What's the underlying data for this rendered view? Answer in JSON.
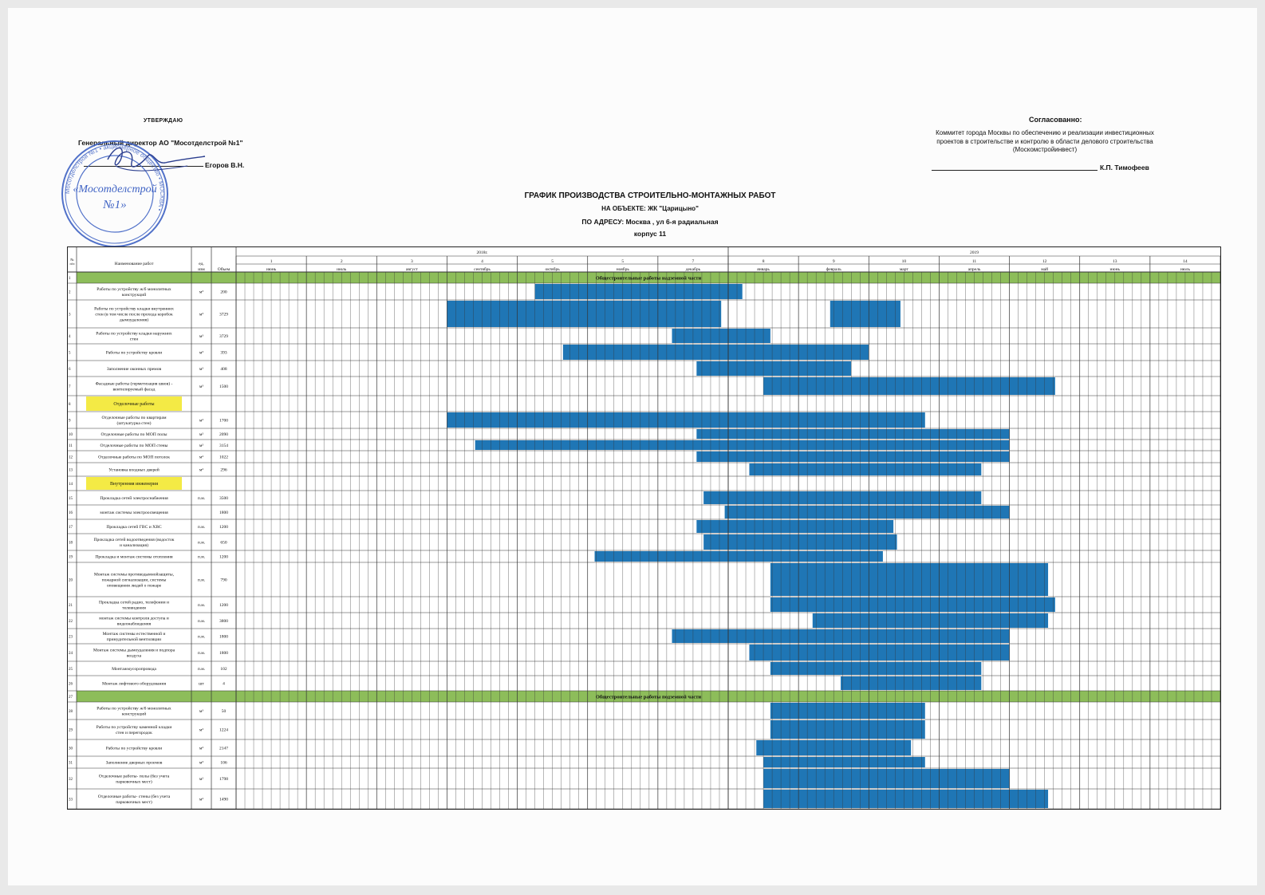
{
  "header": {
    "approve_title": "УТВЕРЖДАЮ",
    "approve_position": "Генеральный директор АО \"Мосотделстрой №1\"",
    "approve_name": "Егоров В.Н.",
    "agree_title": "Согласованно:",
    "agree_org": "Коммитет города Москвы по обеспечению и реализации инвестиционных проектов в строительстве и контролю в области делового строительства (Москомстройинвест)",
    "agree_name": "К.П. Тимофеев"
  },
  "document": {
    "title": "ГРАФИК ПРОИЗВОДСТВА СТРОИТЕЛЬНО-МОНТАЖНЫХ РАБОТ",
    "object": "НА ОБЪЕКТЕ: ЖК \"Царицыно\"",
    "address": "ПО АДРЕСУ: Москва , ул 6-я радиальная",
    "building": "корпус 11"
  },
  "stamp": {
    "center_text_1": "«Мосотделстрой",
    "center_text_2": "№1»",
    "ring_text": "Мосотделстрой №1 • акционерное общество • МОСКВА •",
    "color": "#3f63c4"
  },
  "table": {
    "headers": {
      "num": "№ п/п",
      "name": "Наименование работ",
      "unit": "ед. изм",
      "volume": "Объем"
    },
    "years": [
      {
        "label": "2018г.",
        "span": 7
      },
      {
        "label": "2019",
        "span": 7
      }
    ],
    "months": [
      {
        "num": "1",
        "name": "июнь"
      },
      {
        "num": "2",
        "name": "июль"
      },
      {
        "num": "3",
        "name": "август"
      },
      {
        "num": "4",
        "name": "сентябрь"
      },
      {
        "num": "5",
        "name": "октябрь"
      },
      {
        "num": "5",
        "name": "ноябрь"
      },
      {
        "num": "7",
        "name": "декабрь"
      },
      {
        "num": "8",
        "name": "январь"
      },
      {
        "num": "9",
        "name": "февраль"
      },
      {
        "num": "10",
        "name": "март"
      },
      {
        "num": "11",
        "name": "апрель"
      },
      {
        "num": "12",
        "name": "май"
      },
      {
        "num": "13",
        "name": "июнь"
      },
      {
        "num": "14",
        "name": "июль"
      }
    ],
    "bar_color": "#1f76b5",
    "section_color": "#8dbd5a",
    "subsection_color": "#f4ea45",
    "rows": [
      {
        "type": "section",
        "num": "1",
        "text": "Общестроительные работы надземной части"
      },
      {
        "type": "work",
        "num": "2",
        "name": "Работы по устройству ж/б монолитных конструкций",
        "unit": "м³",
        "volume": "200",
        "bars": [
          [
            6.58,
            7.2
          ],
          [
            4.25,
            7.2
          ]
        ],
        "h": 21
      },
      {
        "type": "work",
        "num": "3",
        "name": "Работы по устройству кладки внутренних стен (в том числе после прохода коробок дымоудаления)",
        "unit": "м³",
        "volume": "3729",
        "bars": [
          [
            3.0,
            6.9
          ],
          [
            8.45,
            9.45
          ]
        ],
        "h": 35
      },
      {
        "type": "work",
        "num": "4",
        "name": "Работы по устройству кладки наружних стен",
        "unit": "м³",
        "volume": "3729",
        "bars": [
          [
            6.2,
            7.6
          ]
        ],
        "h": 20
      },
      {
        "type": "work",
        "num": "5",
        "name": "Работы по устройству кровли",
        "unit": "м³",
        "volume": "393",
        "bars": [
          [
            4.65,
            9.0
          ]
        ],
        "h": 21
      },
      {
        "type": "work",
        "num": "6",
        "name": "Заполнение оконных премов",
        "unit": "м³",
        "volume": "408",
        "bars": [
          [
            6.55,
            8.75
          ]
        ],
        "h": 20
      },
      {
        "type": "work",
        "num": "7",
        "name": "Фасадные работы (герметизация швов) - вентилируемый фасад",
        "unit": "м³",
        "volume": "1500",
        "bars": [
          [
            7.5,
            11.65
          ]
        ],
        "h": 24
      },
      {
        "type": "subsection",
        "num": "8",
        "text": "Отделочные работы",
        "h": 20
      },
      {
        "type": "work",
        "num": "9",
        "name": "Отделочные работы по квартирам (штукатурка стен)",
        "unit": "м²",
        "volume": "1700",
        "bars": [
          [
            3.0,
            9.8
          ]
        ],
        "h": 21
      },
      {
        "type": "work",
        "num": "10",
        "name": "Отделочные работы по МОП полы",
        "unit": "м²",
        "volume": "2090",
        "bars": [
          [
            6.55,
            11.0
          ]
        ],
        "h": 14
      },
      {
        "type": "work",
        "num": "11",
        "name": "Отделочные работы по МОП стены",
        "unit": "м²",
        "volume": "3154",
        "bars": [
          [
            3.4,
            11.0
          ]
        ],
        "h": 14
      },
      {
        "type": "work",
        "num": "12",
        "name": "Отделочные работы по МОП потолок",
        "unit": "м²",
        "volume": "1022",
        "bars": [
          [
            6.55,
            11.0
          ]
        ],
        "h": 15
      },
      {
        "type": "work",
        "num": "13",
        "name": "Установка входных дверей",
        "unit": "м²",
        "volume": "296",
        "bars": [
          [
            7.3,
            10.6
          ]
        ],
        "h": 17
      },
      {
        "type": "subsection",
        "num": "14",
        "text": "Внутренняя инженерия",
        "h": 18
      },
      {
        "type": "work",
        "num": "15",
        "name": "Прокладка сетей электроснабжения",
        "unit": "п.м.",
        "volume": "3500",
        "bars": [
          [
            6.65,
            10.6
          ]
        ],
        "h": 18
      },
      {
        "type": "work",
        "num": "16",
        "name": "монтаж системы электроосвещения",
        "unit": "",
        "volume": "1800",
        "bars": [
          [
            6.95,
            11.0
          ]
        ],
        "h": 18
      },
      {
        "type": "work",
        "num": "17",
        "name": "Прокладка сетей ГВС и ХВС",
        "unit": "п.м.",
        "volume": "1200",
        "bars": [
          [
            6.55,
            9.35
          ]
        ],
        "h": 18
      },
      {
        "type": "work",
        "num": "18",
        "name": "Прокладка сетей водоотведения (водосток и канализация)",
        "unit": "п.м.",
        "volume": "650",
        "bars": [
          [
            6.65,
            9.4
          ]
        ],
        "h": 21
      },
      {
        "type": "work",
        "num": "19",
        "name": "Прокладка и монтаж системы отопления",
        "unit": "п.м.",
        "volume": "1200",
        "bars": [
          [
            5.1,
            9.2
          ]
        ],
        "h": 15
      },
      {
        "type": "work",
        "num": "20",
        "name": "Монтаж системы противодымнойзащиты, пожарной сигнализации, системы оповещения людей о пожаре",
        "unit": "п.м.",
        "volume": "790",
        "bars": [
          [
            7.6,
            11.55
          ]
        ],
        "h": 43
      },
      {
        "type": "work",
        "num": "21",
        "name": "Прокладка сетей радио, телефонии и телевидения",
        "unit": "п.м.",
        "volume": "1200",
        "bars": [
          [
            7.6,
            11.65
          ]
        ],
        "h": 20
      },
      {
        "type": "work",
        "num": "22",
        "name": "монтаж системы контроля доступа и видеонаблюдения",
        "unit": "п.м.",
        "volume": "3800",
        "bars": [
          [
            8.2,
            11.55
          ]
        ],
        "h": 20
      },
      {
        "type": "work",
        "num": "23",
        "name": "Монтаж системы естественной и принудительной вентиляции",
        "unit": "п.м.",
        "volume": "1800",
        "bars": [
          [
            6.2,
            11.0
          ]
        ],
        "h": 19
      },
      {
        "type": "work",
        "num": "24",
        "name": "Монтаж системы дымоудаления и подпора воздуха",
        "unit": "п.м.",
        "volume": "1800",
        "bars": [
          [
            7.3,
            11.0
          ]
        ],
        "h": 22
      },
      {
        "type": "work",
        "num": "25",
        "name": "Монтажмусоропровода",
        "unit": "п.м.",
        "volume": "102",
        "bars": [
          [
            7.6,
            10.6
          ]
        ],
        "h": 18
      },
      {
        "type": "work",
        "num": "26",
        "name": "Монтаж лифтового оборудования",
        "unit": "шт",
        "volume": "4",
        "bars": [
          [
            8.6,
            10.6
          ]
        ],
        "h": 19
      },
      {
        "type": "section",
        "num": "27",
        "text": "Общестроительные работы подземной части"
      },
      {
        "type": "work",
        "num": "28",
        "name": "Работы по устройству ж/б монолитных конструкций",
        "unit": "м³",
        "volume": "50",
        "bars": [
          [
            7.6,
            9.8
          ]
        ],
        "h": 22
      },
      {
        "type": "work",
        "num": "29",
        "name": "Работы по устройству каменной кладки стен и перегородок",
        "unit": "м³",
        "volume": "1224",
        "bars": [
          [
            7.6,
            9.8
          ]
        ],
        "h": 25
      },
      {
        "type": "work",
        "num": "30",
        "name": "Работы по устройству кровли",
        "unit": "м³",
        "volume": "2147",
        "bars": [
          [
            7.4,
            9.6
          ]
        ],
        "h": 21
      },
      {
        "type": "work",
        "num": "31",
        "name": "Заполнение дверных проемов",
        "unit": "м³",
        "volume": "106",
        "bars": [
          [
            7.5,
            9.8
          ]
        ],
        "h": 15
      },
      {
        "type": "work",
        "num": "32",
        "name": "Отделочные работы- полы (без учета парковочных мест)",
        "unit": "м²",
        "volume": "1798",
        "bars": [
          [
            7.5,
            11.0
          ]
        ],
        "h": 26
      },
      {
        "type": "work",
        "num": "33",
        "name": "Отделочные работы- стены (без учета парковочных мест)",
        "unit": "м²",
        "volume": "1490",
        "bars": [
          [
            7.5,
            11.55
          ]
        ],
        "h": 25
      }
    ]
  }
}
